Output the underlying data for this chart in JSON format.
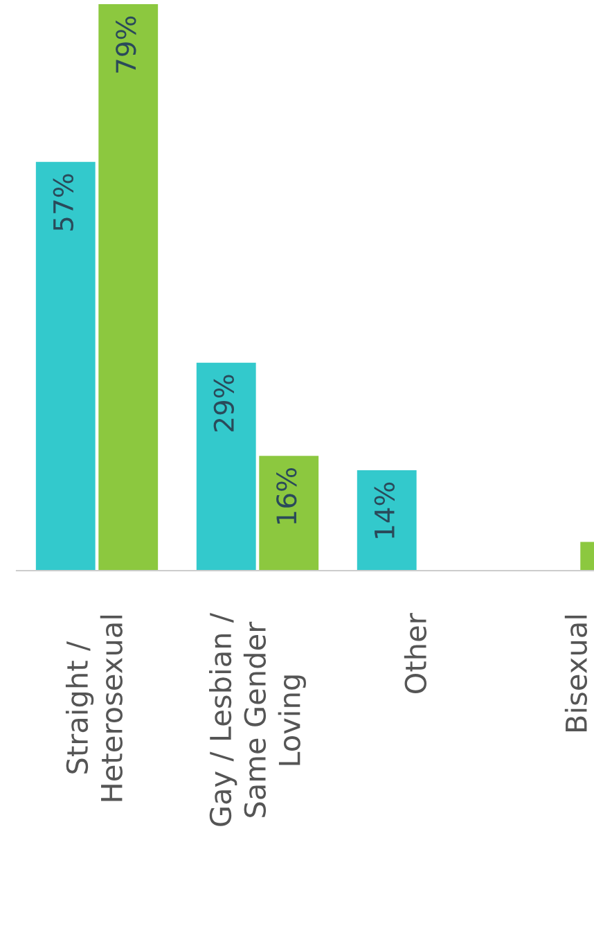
{
  "chart_data": {
    "type": "bar",
    "categories": [
      "Straight /\nHeterosexual",
      "Gay / Lesbian /\nSame Gender\nLoving",
      "Other",
      "Bisexual"
    ],
    "series": [
      {
        "color": "#33c9cc",
        "values": [
          57,
          29,
          14,
          null
        ],
        "value_labels": [
          "57%",
          "29%",
          "14%",
          null
        ]
      },
      {
        "color": "#8cc83f",
        "values": [
          79,
          16,
          null,
          4
        ],
        "value_labels": [
          "79%",
          "16%",
          null,
          null
        ]
      }
    ],
    "legend": false,
    "grid": false
  }
}
